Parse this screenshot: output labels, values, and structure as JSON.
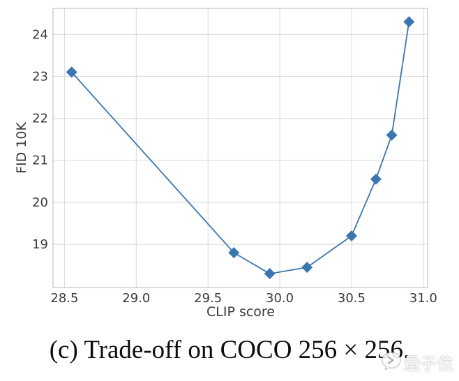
{
  "chart_data": {
    "type": "line",
    "title": "",
    "xlabel": "CLIP score",
    "ylabel": "FID 10K",
    "x": [
      28.55,
      29.68,
      29.93,
      30.19,
      30.5,
      30.67,
      30.78,
      30.9
    ],
    "y": [
      23.1,
      18.8,
      18.3,
      18.45,
      19.2,
      20.55,
      21.6,
      24.3
    ],
    "xlim": [
      28.42,
      31.03
    ],
    "ylim": [
      17.97,
      24.62
    ],
    "xticks": [
      28.5,
      29.0,
      29.5,
      30.0,
      30.5,
      31.0
    ],
    "xtick_labels": [
      "28.5",
      "29.0",
      "29.5",
      "30.0",
      "30.5",
      "31.0"
    ],
    "yticks": [
      19,
      20,
      21,
      22,
      23,
      24
    ],
    "ytick_labels": [
      "19",
      "20",
      "21",
      "22",
      "23",
      "24"
    ],
    "grid": true,
    "legend_position": "none",
    "marker": "diamond",
    "colors": {
      "line": "#3a76b0",
      "marker": "#3a76b0",
      "grid": "#dcdcdc",
      "spine": "#cccccc",
      "tick_text": "#3a3a3a"
    }
  },
  "caption": {
    "text": "(c) Trade-off on COCO 256 × 256."
  },
  "watermark": {
    "text": "量子位",
    "icon": "speech-bubble-icon"
  }
}
